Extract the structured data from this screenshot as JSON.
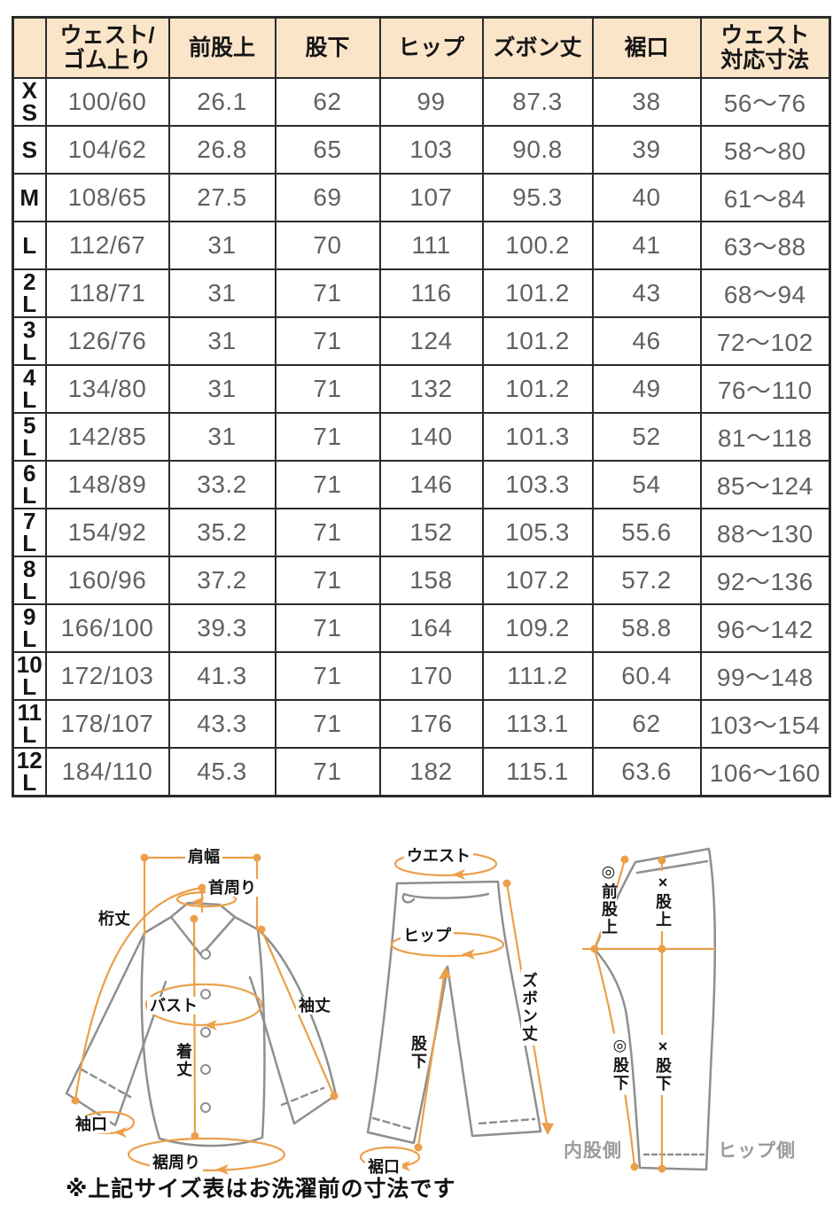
{
  "colors": {
    "header_bg": "#fae5c9",
    "table_border": "#2b2b2b",
    "cell_text": "#616161",
    "label_text": "#161616",
    "accent_orange": "#ec9f49",
    "garment_outline_gray": "#8f8f8f",
    "side_label_gray": "#9b9b9b"
  },
  "table": {
    "headers": [
      "",
      "ウェスト/\nゴム上り",
      "前股上",
      "股下",
      "ヒップ",
      "ズボン丈",
      "裾口",
      "ウェスト\n対応寸法"
    ],
    "rows": [
      {
        "size": "X\nS",
        "cells": [
          "100/60",
          "26.1",
          "62",
          "99",
          "87.3",
          "38",
          "56〜76"
        ]
      },
      {
        "size": "S",
        "cells": [
          "104/62",
          "26.8",
          "65",
          "103",
          "90.8",
          "39",
          "58〜80"
        ]
      },
      {
        "size": "M",
        "cells": [
          "108/65",
          "27.5",
          "69",
          "107",
          "95.3",
          "40",
          "61〜84"
        ]
      },
      {
        "size": "L",
        "cells": [
          "112/67",
          "31",
          "70",
          "111",
          "100.2",
          "41",
          "63〜88"
        ]
      },
      {
        "size": "2\nL",
        "cells": [
          "118/71",
          "31",
          "71",
          "116",
          "101.2",
          "43",
          "68〜94"
        ]
      },
      {
        "size": "3\nL",
        "cells": [
          "126/76",
          "31",
          "71",
          "124",
          "101.2",
          "46",
          "72〜102"
        ]
      },
      {
        "size": "4\nL",
        "cells": [
          "134/80",
          "31",
          "71",
          "132",
          "101.2",
          "49",
          "76〜110"
        ]
      },
      {
        "size": "5\nL",
        "cells": [
          "142/85",
          "31",
          "71",
          "140",
          "101.3",
          "52",
          "81〜118"
        ]
      },
      {
        "size": "6\nL",
        "cells": [
          "148/89",
          "33.2",
          "71",
          "146",
          "103.3",
          "54",
          "85〜124"
        ]
      },
      {
        "size": "7\nL",
        "cells": [
          "154/92",
          "35.2",
          "71",
          "152",
          "105.3",
          "55.6",
          "88〜130"
        ]
      },
      {
        "size": "8\nL",
        "cells": [
          "160/96",
          "37.2",
          "71",
          "158",
          "107.2",
          "57.2",
          "92〜136"
        ]
      },
      {
        "size": "9\nL",
        "cells": [
          "166/100",
          "39.3",
          "71",
          "164",
          "109.2",
          "58.8",
          "96〜142"
        ]
      },
      {
        "size": "10\nL",
        "cells": [
          "172/103",
          "41.3",
          "71",
          "170",
          "111.2",
          "60.4",
          "99〜148"
        ]
      },
      {
        "size": "11\nL",
        "cells": [
          "178/107",
          "43.3",
          "71",
          "176",
          "113.1",
          "62",
          "103〜154"
        ]
      },
      {
        "size": "12\nL",
        "cells": [
          "184/110",
          "45.3",
          "71",
          "182",
          "115.1",
          "63.6",
          "106〜160"
        ]
      }
    ]
  },
  "diagram": {
    "shirt": {
      "shoulder_width": "肩幅",
      "neck_around": "首周り",
      "sleeve_reach": "桁丈",
      "sleeve_length": "袖丈",
      "bust": "バスト",
      "body_length": "着丈",
      "cuff_opening": "袖口",
      "hem_around": "裾周り"
    },
    "pants_front": {
      "waist": "ウエスト",
      "hip": "ヒップ",
      "pants_length": "ズボン丈",
      "inseam": "股下",
      "hem_opening": "裾口"
    },
    "pants_side": {
      "front_rise": "◎前股上",
      "rise": "×股上",
      "inseam_double_circle": "◎股下",
      "inseam_x": "×股下",
      "inner_side": "内股側",
      "hip_side": "ヒップ側"
    }
  },
  "note": "※上記サイズ表はお洗濯前の寸法です"
}
